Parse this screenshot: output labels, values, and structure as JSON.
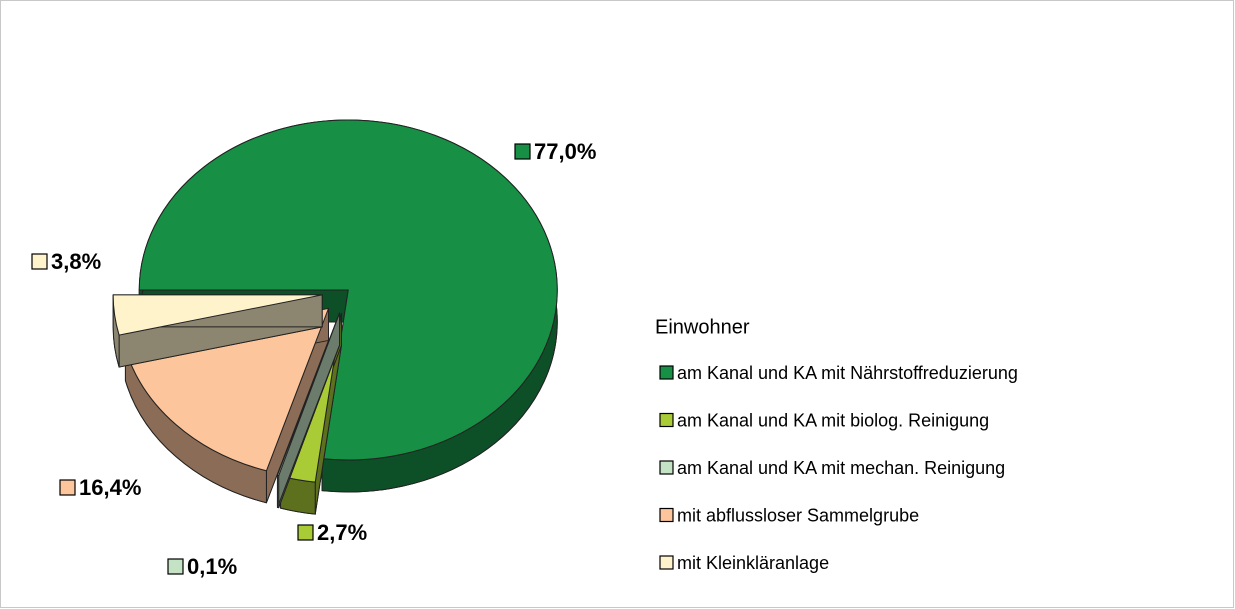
{
  "chart_data": {
    "type": "pie",
    "legend_title": "Einwohner",
    "categories": [
      "am Kanal und KA mit Nährstoffreduzierung",
      "am Kanal und KA mit biolog. Reinigung",
      "am Kanal und KA mit mechan. Reinigung",
      "mit abflussloser Sammelgrube",
      "mit Kleinkläranlage"
    ],
    "values": [
      77.0,
      2.7,
      0.1,
      16.4,
      3.8
    ],
    "value_labels": [
      "77,0%",
      "2,7%",
      "0,1%",
      "16,4%",
      "3,8%"
    ],
    "colors": [
      "#178f45",
      "#a9cc36",
      "#c4e2c4",
      "#fcc59c",
      "#fff3cc"
    ],
    "legend": "right"
  }
}
